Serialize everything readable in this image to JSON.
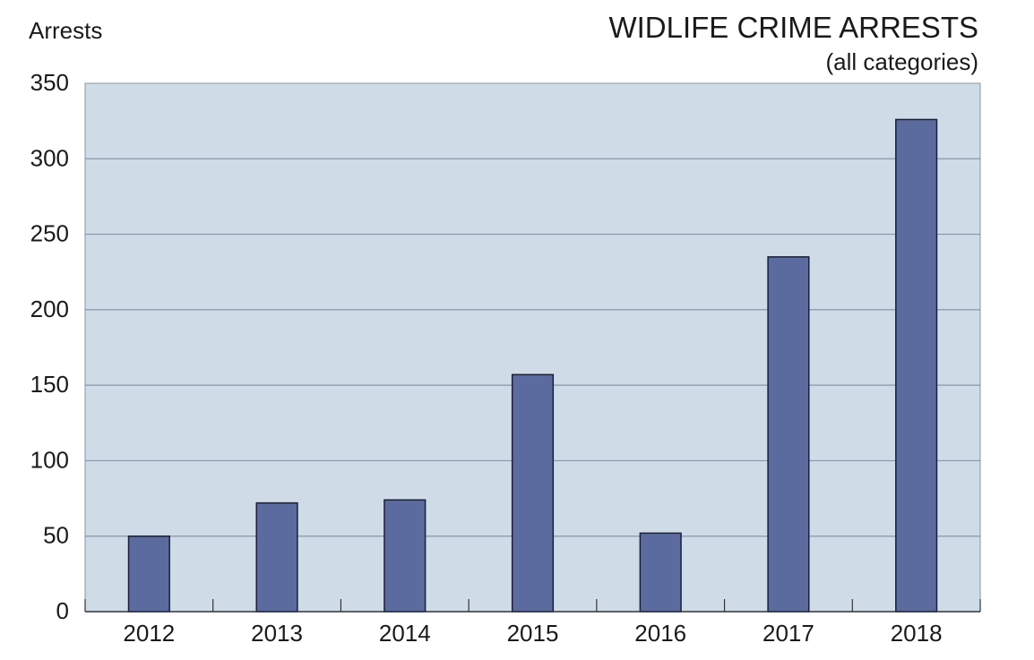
{
  "chart_data": {
    "type": "bar",
    "title": "WIDLIFE CRIME ARRESTS",
    "subtitle": "(all categories)",
    "ylabel": "Arrests",
    "xlabel": "",
    "categories": [
      "2012",
      "2013",
      "2014",
      "2015",
      "2016",
      "2017",
      "2018"
    ],
    "values": [
      50,
      72,
      74,
      157,
      52,
      235,
      326
    ],
    "ylim": [
      0,
      350
    ],
    "yticks": [
      0,
      50,
      100,
      150,
      200,
      250,
      300,
      350
    ],
    "grid": true,
    "legend": "none",
    "colors": {
      "bar": "#5b6b9f",
      "bar_stroke": "#1a1f3a",
      "plot_background": "#cfdce8",
      "grid": "#8a96a3",
      "axis": "#333333"
    }
  }
}
